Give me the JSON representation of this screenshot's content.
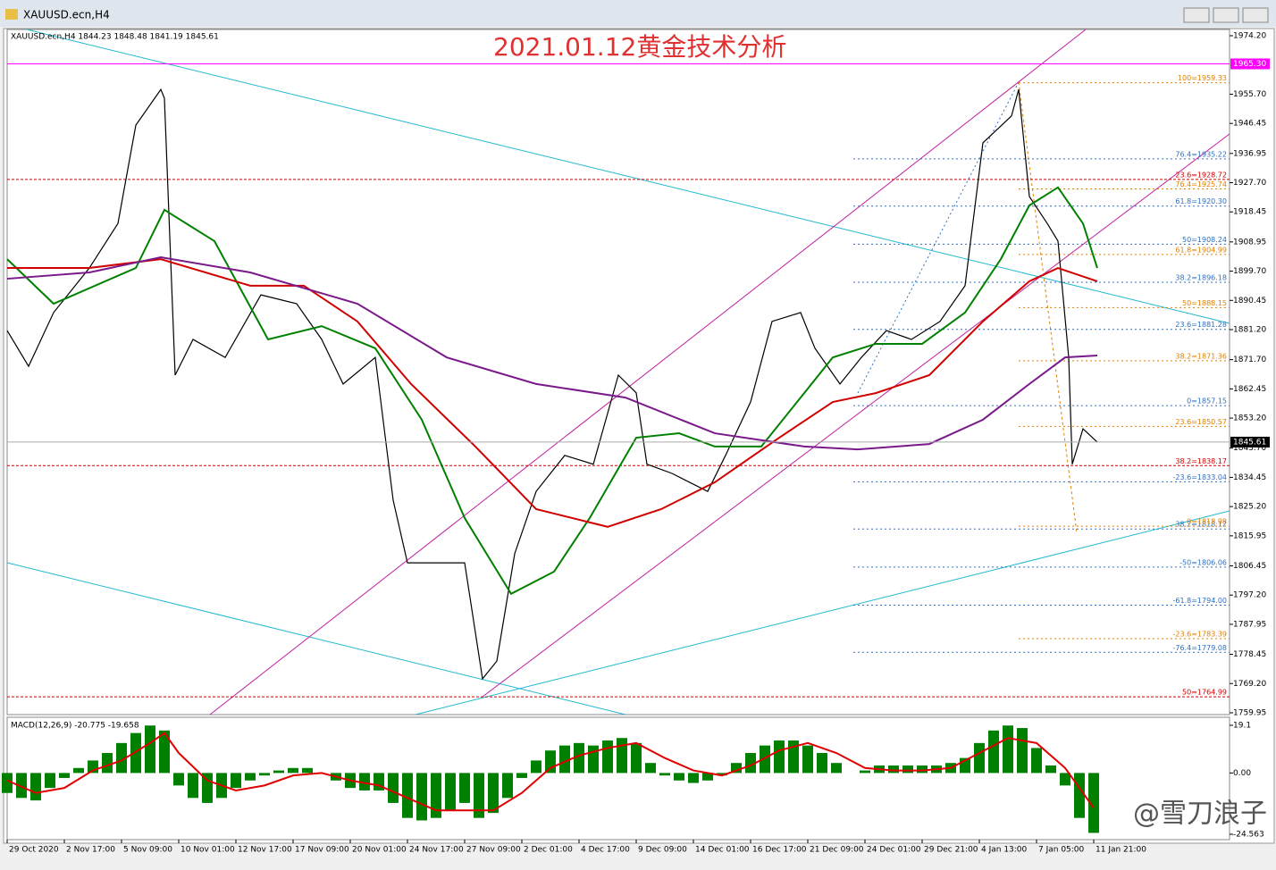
{
  "window": {
    "title": "XAUUSD.ecn,H4"
  },
  "watermark": "@雪刀浪子",
  "chart_data": [
    {
      "type": "line",
      "title": "2021.01.12黄金技术分析",
      "header": "XAUUSD.ecn,H4  1844.23 1848.48 1841.19 1845.61",
      "xlim": [
        0,
        342
      ],
      "xticks": [
        {
          "value": 0,
          "label": "29 Oct 2020"
        },
        {
          "value": 16,
          "label": "2 Nov 17:00"
        },
        {
          "value": 32,
          "label": "5 Nov 09:00"
        },
        {
          "value": 48,
          "label": "10 Nov 01:00"
        },
        {
          "value": 64,
          "label": "12 Nov 17:00"
        },
        {
          "value": 80,
          "label": "17 Nov 09:00"
        },
        {
          "value": 96,
          "label": "20 Nov 01:00"
        },
        {
          "value": 112,
          "label": "24 Nov 17:00"
        },
        {
          "value": 128,
          "label": "27 Nov 09:00"
        },
        {
          "value": 144,
          "label": "2 Dec 01:00"
        },
        {
          "value": 160,
          "label": "4 Dec 17:00"
        },
        {
          "value": 176,
          "label": "9 Dec 09:00"
        },
        {
          "value": 192,
          "label": "14 Dec 01:00"
        },
        {
          "value": 208,
          "label": "16 Dec 17:00"
        },
        {
          "value": 224,
          "label": "21 Dec 09:00"
        },
        {
          "value": 240,
          "label": "24 Dec 01:00"
        },
        {
          "value": 256,
          "label": "29 Dec 21:00"
        },
        {
          "value": 272,
          "label": "4 Jan 13:00"
        },
        {
          "value": 288,
          "label": "7 Jan 05:00"
        },
        {
          "value": 304,
          "label": "11 Jan 21:00"
        }
      ],
      "ylim": [
        1759.38,
        1976.18
      ],
      "yticks": [
        {
          "value": 1974.2,
          "label": "1974.20"
        },
        {
          "value": 1955.7,
          "label": "1955.70"
        },
        {
          "value": 1946.45,
          "label": "1946.45"
        },
        {
          "value": 1936.95,
          "label": "1936.95"
        },
        {
          "value": 1927.7,
          "label": "1927.70"
        },
        {
          "value": 1918.45,
          "label": "1918.45"
        },
        {
          "value": 1908.95,
          "label": "1908.95"
        },
        {
          "value": 1899.7,
          "label": "1899.70"
        },
        {
          "value": 1890.45,
          "label": "1890.45"
        },
        {
          "value": 1881.2,
          "label": "1881.20"
        },
        {
          "value": 1871.7,
          "label": "1871.70"
        },
        {
          "value": 1862.45,
          "label": "1862.45"
        },
        {
          "value": 1853.2,
          "label": "1853.20"
        },
        {
          "value": 1843.7,
          "label": "1843.70"
        },
        {
          "value": 1834.45,
          "label": "1834.45"
        },
        {
          "value": 1825.2,
          "label": "1825.20"
        },
        {
          "value": 1815.95,
          "label": "1815.95"
        },
        {
          "value": 1806.45,
          "label": "1806.45"
        },
        {
          "value": 1797.2,
          "label": "1797.20"
        },
        {
          "value": 1787.95,
          "label": "1787.95"
        },
        {
          "value": 1778.45,
          "label": "1778.45"
        },
        {
          "value": 1769.2,
          "label": "1769.20"
        },
        {
          "value": 1759.95,
          "label": "1759.95"
        }
      ],
      "series": [
        {
          "color": "#000000",
          "x": [
            0,
            6,
            13,
            23,
            31,
            36,
            43,
            44,
            47,
            52,
            61,
            71,
            81,
            88,
            94,
            103,
            108,
            112,
            121,
            128,
            133,
            137,
            142,
            148,
            156,
            164,
            171,
            176,
            179,
            186,
            196,
            201,
            208,
            214,
            222,
            226,
            233,
            239,
            246,
            253,
            261,
            268,
            273,
            281,
            283,
            286,
            291,
            294,
            297,
            298,
            301,
            305
          ],
          "values": [
            1880.9,
            1869.6,
            1886.6,
            1900.7,
            1914.8,
            1945.9,
            1957.2,
            1954.4,
            1866.8,
            1878.1,
            1872.4,
            1892.2,
            1889.4,
            1878.1,
            1864.0,
            1872.4,
            1827.2,
            1807.4,
            1807.4,
            1807.4,
            1770.7,
            1776.3,
            1810.3,
            1830.0,
            1841.4,
            1838.6,
            1866.8,
            1861.2,
            1838.6,
            1835.7,
            1830.0,
            1841.4,
            1858.3,
            1883.8,
            1886.6,
            1875.3,
            1864.0,
            1872.4,
            1880.9,
            1878.1,
            1883.8,
            1895.1,
            1940.3,
            1948.8,
            1957.2,
            1923.3,
            1914.8,
            1909.2,
            1872.4,
            1838.6,
            1849.8,
            1845.61
          ]
        },
        {
          "color": "#008000",
          "x": [
            0,
            13,
            36,
            44,
            58,
            73,
            88,
            103,
            116,
            128,
            141,
            153,
            163,
            176,
            188,
            198,
            211,
            223,
            231,
            243,
            256,
            268,
            278,
            286,
            294,
            301,
            305
          ],
          "values": [
            1903.5,
            1889.4,
            1900.7,
            1919.1,
            1909.2,
            1878.1,
            1882.3,
            1875.3,
            1852.7,
            1821.6,
            1797.6,
            1804.6,
            1821.6,
            1847.0,
            1848.4,
            1844.2,
            1844.2,
            1861.1,
            1872.4,
            1876.7,
            1876.7,
            1886.6,
            1903.5,
            1920.5,
            1926.2,
            1914.8,
            1900.7
          ]
        },
        {
          "color": "#d00000",
          "x": [
            0,
            23,
            43,
            68,
            83,
            98,
            113,
            131,
            148,
            168,
            183,
            198,
            216,
            231,
            243,
            258,
            273,
            286,
            294,
            305
          ],
          "values": [
            1900.7,
            1900.7,
            1903.5,
            1895.1,
            1895.1,
            1883.8,
            1864.0,
            1844.2,
            1824.4,
            1818.8,
            1824.4,
            1832.9,
            1847.0,
            1858.3,
            1861.1,
            1866.8,
            1883.8,
            1896.5,
            1900.7,
            1896.5
          ]
        },
        {
          "color": "#7a1a8a",
          "x": [
            0,
            23,
            43,
            68,
            98,
            123,
            148,
            173,
            198,
            223,
            238,
            258,
            273,
            286,
            296,
            305
          ],
          "values": [
            1897.3,
            1899.3,
            1904.1,
            1899.3,
            1889.4,
            1872.4,
            1864.0,
            1859.7,
            1848.4,
            1844.2,
            1843.3,
            1845.0,
            1852.7,
            1864.0,
            1872.4,
            1873.0
          ]
        }
      ],
      "price_labels": [
        {
          "value": 1965.3,
          "label": "1965.30",
          "color": "#ff00ff"
        },
        {
          "value": 1845.61,
          "label": "1845.61",
          "color": "#000000"
        }
      ],
      "red_levels": [
        {
          "value": 1928.72,
          "label": "23.6=1928.72"
        },
        {
          "value": 1838.17,
          "label": "38.2=1838.17"
        },
        {
          "value": 1764.99,
          "label": "50=1764.99"
        }
      ],
      "fib_blue": [
        {
          "value": 1935.22,
          "label": "76.4=1935.22"
        },
        {
          "value": 1920.3,
          "label": "61.8=1920.30"
        },
        {
          "value": 1908.24,
          "label": "50=1908.24"
        },
        {
          "value": 1896.18,
          "label": "38.2=1896.18"
        },
        {
          "value": 1881.28,
          "label": "23.6=1881.28"
        },
        {
          "value": 1857.15,
          "label": "0=1857.15"
        },
        {
          "value": 1833.04,
          "label": "-23.6=1833.04"
        },
        {
          "value": 1818.12,
          "label": "38.2=1818.12"
        },
        {
          "value": 1806.06,
          "label": "-50=1806.06"
        },
        {
          "value": 1794.0,
          "label": "-61.8=1794.00"
        },
        {
          "value": 1779.08,
          "label": "-76.4=1779.08"
        }
      ],
      "fib_orange": [
        {
          "value": 1959.33,
          "label": "100=1959.33"
        },
        {
          "value": 1925.74,
          "label": "76.4=1925.74"
        },
        {
          "value": 1904.99,
          "label": "61.8=1904.99"
        },
        {
          "value": 1888.15,
          "label": "50=1888.15"
        },
        {
          "value": 1871.36,
          "label": "38.2=1871.36"
        },
        {
          "value": 1850.57,
          "label": "23.6=1850.57"
        },
        {
          "value": 1818.98,
          "label": "0=1818.98"
        },
        {
          "value": 1783.39,
          "label": "-23.6=1783.39"
        }
      ]
    },
    {
      "type": "macd",
      "label": "MACD(12,26,9) -20.775 -19.658",
      "xlim": [
        0,
        342
      ],
      "ylim": [
        -26.7,
        21.6
      ],
      "yticks": [
        19.1,
        {
          "value": 0,
          "label": "0.00"
        },
        -24.563
      ],
      "histogram": {
        "color": "#008000",
        "x": [
          0,
          4,
          8,
          12,
          16,
          20,
          24,
          28,
          32,
          36,
          40,
          44,
          48,
          52,
          56,
          60,
          64,
          68,
          72,
          76,
          80,
          84,
          88,
          92,
          96,
          100,
          104,
          108,
          112,
          116,
          120,
          124,
          128,
          132,
          136,
          140,
          144,
          148,
          152,
          156,
          160,
          164,
          168,
          172,
          176,
          180,
          184,
          188,
          192,
          196,
          200,
          204,
          208,
          212,
          216,
          220,
          224,
          228,
          232,
          236,
          240,
          244,
          248,
          252,
          256,
          260,
          264,
          268,
          272,
          276,
          280,
          284,
          288,
          292,
          296,
          300,
          304
        ],
        "values": [
          -8,
          -10,
          -11,
          -6,
          -2,
          2,
          5,
          8,
          12,
          16,
          19,
          17,
          -5,
          -10,
          -12,
          -10,
          -6,
          -3,
          -1,
          1,
          2,
          2,
          0,
          -3,
          -6,
          -7,
          -7,
          -12,
          -18,
          -19,
          -18,
          -15,
          -12,
          -18,
          -16,
          -10,
          -2,
          5,
          9,
          11,
          12,
          11,
          13,
          14,
          12,
          4,
          -1,
          -3,
          -4,
          -3,
          -1,
          4,
          8,
          11,
          13,
          13,
          11,
          8,
          4,
          0,
          1,
          3,
          3,
          3,
          3,
          3,
          4,
          6,
          12,
          17,
          19,
          18,
          10,
          3,
          -5,
          -18,
          -24
        ]
      },
      "signal": {
        "color": "#e00000",
        "x": [
          0,
          8,
          16,
          24,
          32,
          40,
          44,
          48,
          56,
          64,
          72,
          80,
          88,
          96,
          104,
          112,
          120,
          128,
          136,
          144,
          152,
          160,
          168,
          176,
          184,
          192,
          200,
          208,
          216,
          224,
          232,
          240,
          248,
          256,
          264,
          272,
          280,
          288,
          296,
          304
        ],
        "values": [
          -3,
          -8,
          -6,
          1,
          5,
          12,
          16,
          8,
          -3,
          -7,
          -5,
          -1,
          0,
          -3,
          -5,
          -10,
          -15,
          -15,
          -15,
          -8,
          2,
          7,
          10,
          12,
          6,
          1,
          -1,
          3,
          9,
          12,
          8,
          2,
          1,
          1,
          2,
          8,
          14,
          12,
          2,
          -14
        ]
      }
    }
  ]
}
